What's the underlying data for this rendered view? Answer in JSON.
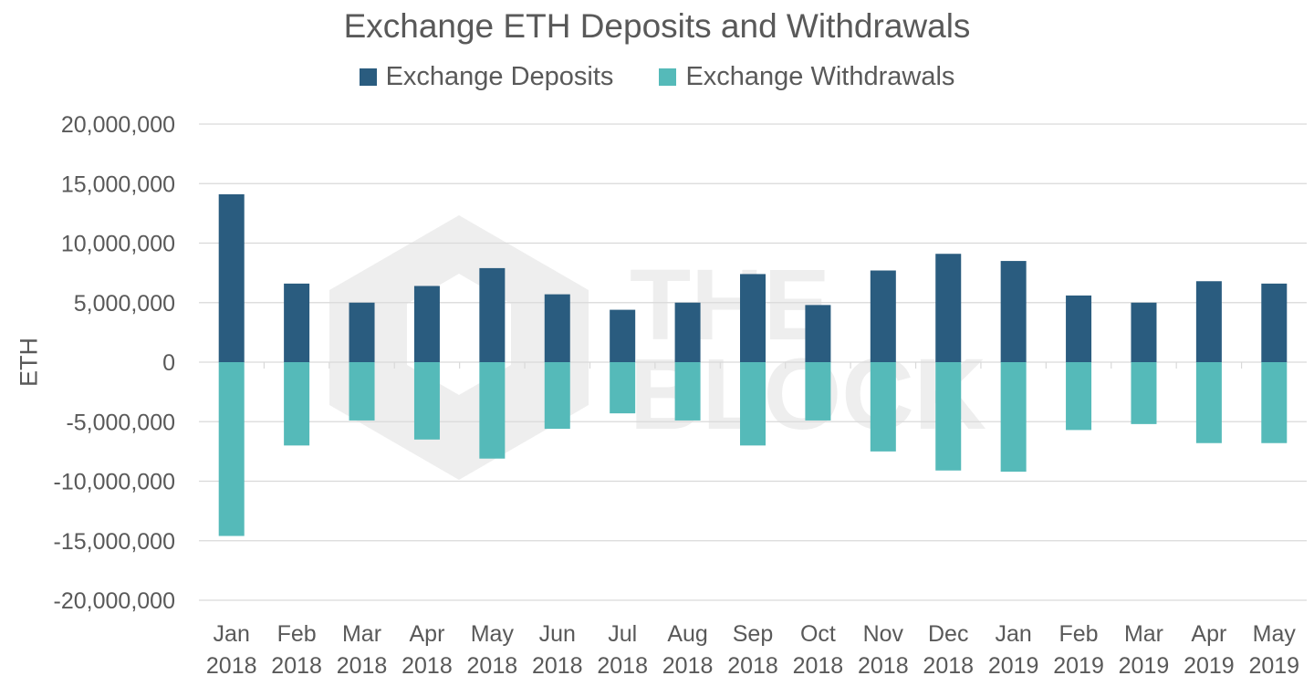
{
  "chart_data": {
    "type": "bar",
    "title": "Exchange ETH Deposits and Withdrawals",
    "xlabel": "",
    "ylabel": "ETH",
    "ylim": [
      -20000000,
      20000000
    ],
    "yticks": [
      20000000,
      15000000,
      10000000,
      5000000,
      0,
      -5000000,
      -10000000,
      -15000000,
      -20000000
    ],
    "ytick_labels": [
      "20,000,000",
      "15,000,000",
      "10,000,000",
      "5,000,000",
      "0",
      "-5,000,000",
      "-10,000,000",
      "-15,000,000",
      "-20,000,000"
    ],
    "categories": [
      [
        "Jan",
        "2018"
      ],
      [
        "Feb",
        "2018"
      ],
      [
        "Mar",
        "2018"
      ],
      [
        "Apr",
        "2018"
      ],
      [
        "May",
        "2018"
      ],
      [
        "Jun",
        "2018"
      ],
      [
        "Jul",
        "2018"
      ],
      [
        "Aug",
        "2018"
      ],
      [
        "Sep",
        "2018"
      ],
      [
        "Oct",
        "2018"
      ],
      [
        "Nov",
        "2018"
      ],
      [
        "Dec",
        "2018"
      ],
      [
        "Jan",
        "2019"
      ],
      [
        "Feb",
        "2019"
      ],
      [
        "Mar",
        "2019"
      ],
      [
        "Apr",
        "2019"
      ],
      [
        "May",
        "2019"
      ]
    ],
    "series": [
      {
        "name": "Exchange Deposits",
        "color": "#2a5c7f",
        "values": [
          14100000,
          6600000,
          5000000,
          6400000,
          7900000,
          5700000,
          4400000,
          5000000,
          7400000,
          4800000,
          7700000,
          9100000,
          8500000,
          5600000,
          5000000,
          6800000,
          6600000
        ]
      },
      {
        "name": "Exchange Withdrawals",
        "color": "#55bab9",
        "values": [
          -14600000,
          -7000000,
          -4900000,
          -6500000,
          -8100000,
          -5600000,
          -4300000,
          -4900000,
          -7000000,
          -4900000,
          -7500000,
          -9100000,
          -9200000,
          -5700000,
          -5200000,
          -6800000,
          -6800000
        ]
      }
    ],
    "grid": true,
    "legend_position": "top-center",
    "watermark": "THE BLOCK",
    "gridline_color": "#d9d9d9"
  }
}
